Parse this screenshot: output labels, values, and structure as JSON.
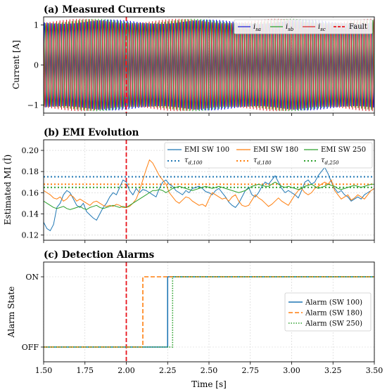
{
  "chart_data": [
    {
      "type": "line",
      "title": "(a) Measured Currents",
      "xlabel": "",
      "ylabel": "Current [A]",
      "xlim": [
        1.5,
        3.5
      ],
      "ylim": [
        -1.2,
        1.2
      ],
      "xticks": [
        "1.50",
        "1.75",
        "2.00",
        "2.25",
        "2.50",
        "2.75",
        "3.00",
        "3.25",
        "3.50"
      ],
      "yticks": [
        -1,
        0,
        1
      ],
      "grid": true,
      "legend": "top-right, single row",
      "frequency_hz": 50,
      "amplitude": 1.1,
      "series": [
        {
          "name": "i",
          "sub": "sa",
          "color": "#1f1fd6",
          "phase_deg": 0
        },
        {
          "name": "i",
          "sub": "sb",
          "color": "#2ca02c",
          "phase_deg": -120
        },
        {
          "name": "i",
          "sub": "sc",
          "color": "#d62728",
          "phase_deg": 120
        }
      ],
      "fault": {
        "name": "Fault",
        "x": 2.0,
        "color": "#e8141c"
      }
    },
    {
      "type": "line",
      "title": "(b) EMI Evolution",
      "xlabel": "",
      "ylabel": "Estimated MI (Î)",
      "xlim": [
        1.5,
        3.5
      ],
      "ylim": [
        0.115,
        0.21
      ],
      "yticks": [
        0.12,
        0.14,
        0.16,
        0.18,
        0.2
      ],
      "grid": true,
      "legend": "top-right, 3 columns",
      "series": [
        {
          "name": "EMI SW 100",
          "color": "#1f77b4",
          "x": [
            1.5,
            1.52,
            1.54,
            1.56,
            1.58,
            1.6,
            1.62,
            1.64,
            1.66,
            1.68,
            1.7,
            1.72,
            1.74,
            1.76,
            1.78,
            1.8,
            1.82,
            1.84,
            1.86,
            1.88,
            1.9,
            1.92,
            1.94,
            1.96,
            1.98,
            2.0,
            2.02,
            2.04,
            2.06,
            2.08,
            2.1,
            2.12,
            2.14,
            2.16,
            2.18,
            2.2,
            2.22,
            2.24,
            2.26,
            2.28,
            2.3,
            2.32,
            2.34,
            2.36,
            2.38,
            2.4,
            2.42,
            2.44,
            2.46,
            2.48,
            2.5,
            2.52,
            2.54,
            2.56,
            2.58,
            2.6,
            2.62,
            2.64,
            2.66,
            2.68,
            2.7,
            2.72,
            2.74,
            2.76,
            2.78,
            2.8,
            2.82,
            2.84,
            2.86,
            2.88,
            2.9,
            2.92,
            2.94,
            2.96,
            2.98,
            3.0,
            3.02,
            3.04,
            3.06,
            3.08,
            3.1,
            3.12,
            3.14,
            3.16,
            3.18,
            3.2,
            3.22,
            3.24,
            3.26,
            3.28,
            3.3,
            3.32,
            3.34,
            3.36,
            3.38,
            3.4,
            3.42,
            3.44,
            3.46,
            3.48,
            3.5
          ],
          "values": [
            0.132,
            0.126,
            0.124,
            0.13,
            0.146,
            0.15,
            0.158,
            0.162,
            0.16,
            0.154,
            0.148,
            0.146,
            0.15,
            0.142,
            0.139,
            0.136,
            0.134,
            0.14,
            0.146,
            0.15,
            0.156,
            0.16,
            0.158,
            0.165,
            0.172,
            0.17,
            0.162,
            0.158,
            0.164,
            0.16,
            0.163,
            0.162,
            0.16,
            0.158,
            0.156,
            0.164,
            0.17,
            0.172,
            0.168,
            0.166,
            0.162,
            0.16,
            0.158,
            0.162,
            0.16,
            0.164,
            0.165,
            0.166,
            0.164,
            0.161,
            0.16,
            0.158,
            0.162,
            0.164,
            0.16,
            0.156,
            0.151,
            0.148,
            0.146,
            0.15,
            0.156,
            0.162,
            0.165,
            0.158,
            0.156,
            0.16,
            0.166,
            0.17,
            0.168,
            0.172,
            0.176,
            0.17,
            0.164,
            0.16,
            0.162,
            0.16,
            0.158,
            0.155,
            0.162,
            0.17,
            0.172,
            0.168,
            0.17,
            0.176,
            0.18,
            0.184,
            0.178,
            0.17,
            0.164,
            0.16,
            0.162,
            0.158,
            0.156,
            0.152,
            0.154,
            0.156,
            0.154,
            0.158,
            0.16,
            0.162,
            0.164
          ]
        },
        {
          "name": "EMI SW 180",
          "color": "#ff7f0e",
          "x": [
            1.5,
            1.52,
            1.54,
            1.56,
            1.58,
            1.6,
            1.62,
            1.64,
            1.66,
            1.68,
            1.7,
            1.72,
            1.74,
            1.76,
            1.78,
            1.8,
            1.82,
            1.84,
            1.86,
            1.88,
            1.9,
            1.92,
            1.94,
            1.96,
            1.98,
            2.0,
            2.02,
            2.04,
            2.06,
            2.08,
            2.1,
            2.12,
            2.14,
            2.16,
            2.18,
            2.2,
            2.22,
            2.24,
            2.26,
            2.28,
            2.3,
            2.32,
            2.34,
            2.36,
            2.38,
            2.4,
            2.42,
            2.44,
            2.46,
            2.48,
            2.5,
            2.52,
            2.54,
            2.56,
            2.58,
            2.6,
            2.62,
            2.64,
            2.66,
            2.68,
            2.7,
            2.72,
            2.74,
            2.76,
            2.78,
            2.8,
            2.82,
            2.84,
            2.86,
            2.88,
            2.9,
            2.92,
            2.94,
            2.96,
            2.98,
            3.0,
            3.02,
            3.04,
            3.06,
            3.08,
            3.1,
            3.12,
            3.14,
            3.16,
            3.18,
            3.2,
            3.22,
            3.24,
            3.26,
            3.28,
            3.3,
            3.32,
            3.34,
            3.36,
            3.38,
            3.4,
            3.42,
            3.44,
            3.46,
            3.48,
            3.5
          ],
          "values": [
            0.162,
            0.16,
            0.158,
            0.155,
            0.154,
            0.156,
            0.152,
            0.154,
            0.158,
            0.156,
            0.152,
            0.154,
            0.152,
            0.15,
            0.148,
            0.151,
            0.152,
            0.15,
            0.148,
            0.147,
            0.148,
            0.147,
            0.149,
            0.148,
            0.146,
            0.146,
            0.147,
            0.15,
            0.154,
            0.162,
            0.172,
            0.182,
            0.191,
            0.188,
            0.182,
            0.176,
            0.172,
            0.168,
            0.16,
            0.156,
            0.152,
            0.15,
            0.153,
            0.156,
            0.155,
            0.152,
            0.15,
            0.148,
            0.149,
            0.147,
            0.154,
            0.16,
            0.158,
            0.156,
            0.154,
            0.155,
            0.152,
            0.156,
            0.158,
            0.152,
            0.148,
            0.147,
            0.148,
            0.153,
            0.158,
            0.155,
            0.153,
            0.15,
            0.147,
            0.149,
            0.152,
            0.155,
            0.152,
            0.15,
            0.148,
            0.153,
            0.158,
            0.162,
            0.164,
            0.16,
            0.158,
            0.16,
            0.164,
            0.166,
            0.168,
            0.17,
            0.168,
            0.172,
            0.162,
            0.158,
            0.154,
            0.156,
            0.158,
            0.153,
            0.155,
            0.158,
            0.156,
            0.154,
            0.158,
            0.162,
            0.164
          ]
        },
        {
          "name": "EMI SW 250",
          "color": "#2ca02c",
          "x": [
            1.5,
            1.52,
            1.54,
            1.56,
            1.58,
            1.6,
            1.62,
            1.64,
            1.66,
            1.68,
            1.7,
            1.72,
            1.74,
            1.76,
            1.78,
            1.8,
            1.82,
            1.84,
            1.86,
            1.88,
            1.9,
            1.92,
            1.94,
            1.96,
            1.98,
            2.0,
            2.02,
            2.04,
            2.06,
            2.08,
            2.1,
            2.12,
            2.14,
            2.16,
            2.18,
            2.2,
            2.22,
            2.24,
            2.26,
            2.28,
            2.3,
            2.32,
            2.34,
            2.36,
            2.38,
            2.4,
            2.42,
            2.44,
            2.46,
            2.48,
            2.5,
            2.52,
            2.54,
            2.56,
            2.58,
            2.6,
            2.62,
            2.64,
            2.66,
            2.68,
            2.7,
            2.72,
            2.74,
            2.76,
            2.78,
            2.8,
            2.82,
            2.84,
            2.86,
            2.88,
            2.9,
            2.92,
            2.94,
            2.96,
            2.98,
            3.0,
            3.02,
            3.04,
            3.06,
            3.08,
            3.1,
            3.12,
            3.14,
            3.16,
            3.18,
            3.2,
            3.22,
            3.24,
            3.26,
            3.28,
            3.3,
            3.32,
            3.34,
            3.36,
            3.38,
            3.4,
            3.42,
            3.44,
            3.46,
            3.48,
            3.5
          ],
          "values": [
            0.152,
            0.15,
            0.148,
            0.146,
            0.145,
            0.146,
            0.147,
            0.145,
            0.144,
            0.145,
            0.146,
            0.147,
            0.145,
            0.144,
            0.146,
            0.147,
            0.148,
            0.146,
            0.145,
            0.146,
            0.147,
            0.148,
            0.147,
            0.146,
            0.147,
            0.146,
            0.148,
            0.15,
            0.152,
            0.154,
            0.156,
            0.158,
            0.16,
            0.162,
            0.162,
            0.163,
            0.162,
            0.16,
            0.162,
            0.164,
            0.165,
            0.166,
            0.165,
            0.164,
            0.163,
            0.162,
            0.163,
            0.164,
            0.165,
            0.166,
            0.165,
            0.164,
            0.165,
            0.166,
            0.165,
            0.164,
            0.163,
            0.162,
            0.161,
            0.16,
            0.161,
            0.162,
            0.164,
            0.166,
            0.167,
            0.168,
            0.167,
            0.166,
            0.166,
            0.168,
            0.17,
            0.168,
            0.166,
            0.165,
            0.166,
            0.165,
            0.164,
            0.163,
            0.164,
            0.166,
            0.167,
            0.168,
            0.166,
            0.164,
            0.165,
            0.166,
            0.168,
            0.167,
            0.166,
            0.164,
            0.163,
            0.164,
            0.165,
            0.166,
            0.167,
            0.166,
            0.165,
            0.166,
            0.167,
            0.168,
            0.168
          ]
        }
      ],
      "thresholds": [
        {
          "name": "τ",
          "sub": "d,100",
          "value": 0.175,
          "color": "#1f77b4"
        },
        {
          "name": "τ",
          "sub": "d,180",
          "value": 0.168,
          "color": "#ff7f0e"
        },
        {
          "name": "τ",
          "sub": "d,250",
          "value": 0.165,
          "color": "#2ca02c"
        }
      ],
      "fault": {
        "x": 2.0,
        "color": "#e8141c"
      }
    },
    {
      "type": "line",
      "title": "(c) Detection Alarms",
      "xlabel": "Time [s]",
      "ylabel": "Alarm State",
      "xlim": [
        1.5,
        3.5
      ],
      "yticks": [
        "OFF",
        "ON"
      ],
      "grid": true,
      "legend": "center-right",
      "series": [
        {
          "name": "Alarm (SW 100)",
          "color": "#1f77b4",
          "style": "solid",
          "switch_time": 2.25
        },
        {
          "name": "Alarm (SW 180)",
          "color": "#ff7f0e",
          "style": "dashed",
          "switch_time": 2.1
        },
        {
          "name": "Alarm (SW 250)",
          "color": "#2ca02c",
          "style": "dotted",
          "switch_time": 2.28
        }
      ],
      "fault": {
        "x": 2.0,
        "color": "#e8141c"
      }
    }
  ]
}
